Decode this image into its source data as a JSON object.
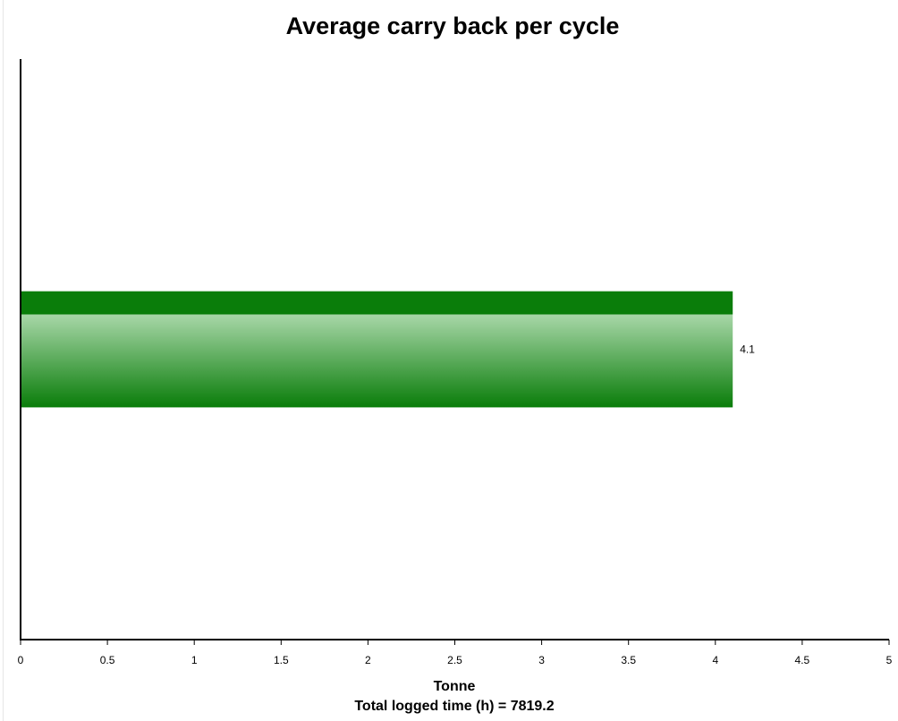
{
  "chart_data": {
    "type": "bar",
    "orientation": "horizontal",
    "title": "Average carry back per cycle",
    "xlabel": "Tonne",
    "subtitle": "Total logged time (h) = 7819.2",
    "categories": [
      ""
    ],
    "values": [
      4.1
    ],
    "data_labels": [
      "4.1"
    ],
    "xlim": [
      0,
      5
    ],
    "xticks": [
      0,
      0.5,
      1,
      1.5,
      2,
      2.5,
      3,
      3.5,
      4,
      4.5,
      5
    ],
    "xtick_labels": [
      "0",
      "0.5",
      "1",
      "1.5",
      "2",
      "2.5",
      "3",
      "3.5",
      "4",
      "4.5",
      "5"
    ],
    "grid": false,
    "legend": "none",
    "colors": {
      "bar_dark": "#0a7d0a",
      "bar_light": "#a8d7a8",
      "axis": "#000000"
    }
  }
}
